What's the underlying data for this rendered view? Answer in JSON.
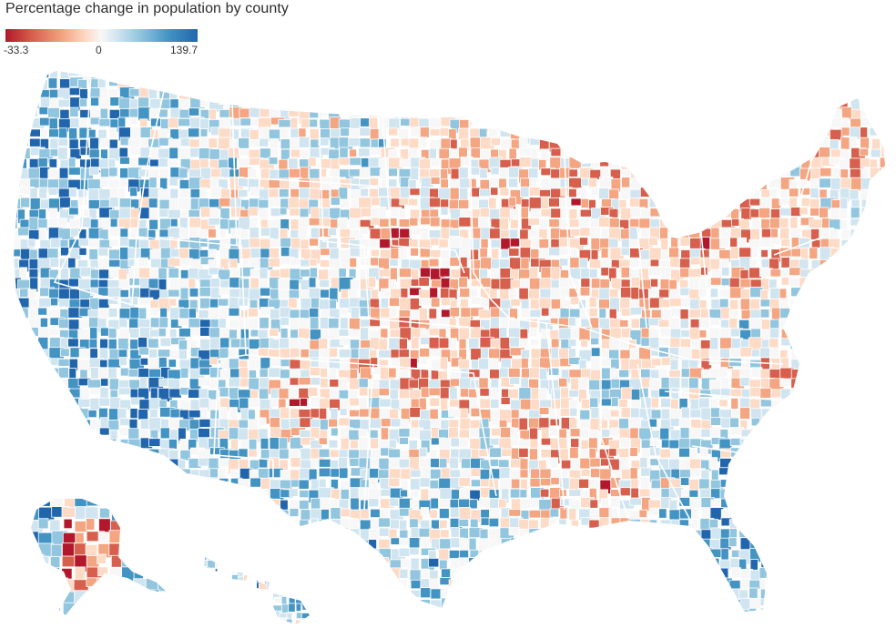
{
  "title": "Percentage change in population by county",
  "legend": {
    "min_label": "-33.3",
    "mid_label": "0",
    "max_label": "139.7",
    "min": -33.3,
    "mid": 0,
    "max": 139.7,
    "colors": [
      "#b2182b",
      "#d6604d",
      "#f4a582",
      "#fddbc7",
      "#f7f7f7",
      "#d1e5f0",
      "#92c5de",
      "#4393c3",
      "#2166ac"
    ]
  },
  "map": {
    "regions": [
      "contiguous-us",
      "alaska",
      "hawaii"
    ],
    "county_border_color": "#ffffff",
    "state_border_color": "#ffffff"
  }
}
